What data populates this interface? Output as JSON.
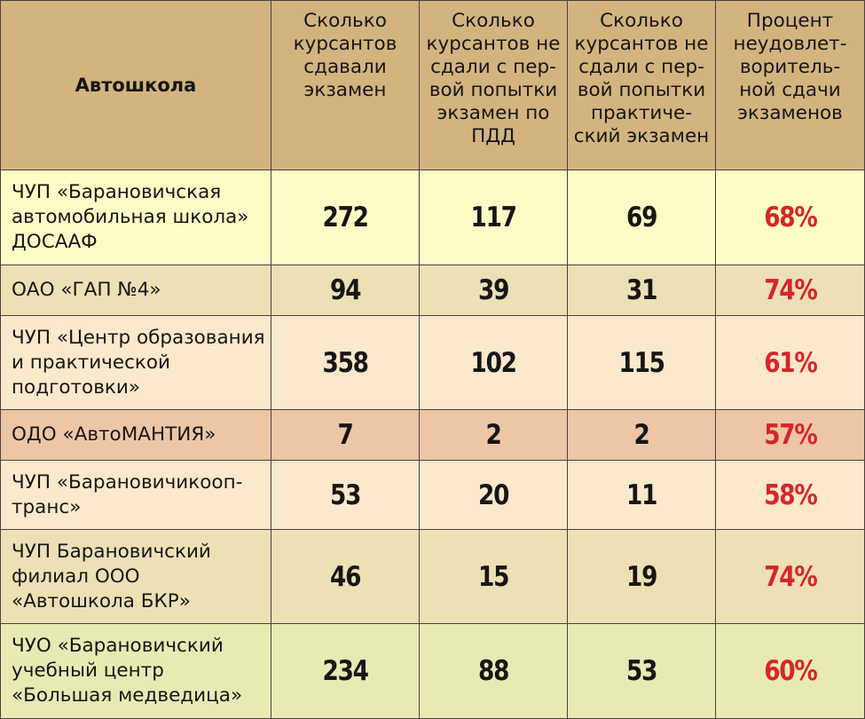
{
  "table": {
    "headers": [
      "Автошкола",
      "Сколько\nкурсантов\nсдавали\nэкзамен",
      "Сколько\nкурсантов не\nсдали с пер-\nвой попытки\nэкзамен по\nПДД",
      "Сколько\nкурсантов не\nсдали с пер-\nвой попытки\nпрактиче-\nский экзамен",
      "Процент\nнеудовлет-\nворитель-\nной сдачи\nэкзаменов"
    ],
    "rows": [
      {
        "name": "ЧУП «Барановичская\nавтомобильная школа»\nДОСААФ",
        "took": "272",
        "failed_theory": "117",
        "failed_practice": "69",
        "fail_percent": "68%"
      },
      {
        "name": "ОАО «ГАП №4»",
        "took": "94",
        "failed_theory": "39",
        "failed_practice": "31",
        "fail_percent": "74%"
      },
      {
        "name": "ЧУП «Центр образования\nи практической\nподготовки»",
        "took": "358",
        "failed_theory": "102",
        "failed_practice": "115",
        "fail_percent": "61%"
      },
      {
        "name": "ОДО «АвтоМАНТИЯ»",
        "took": "7",
        "failed_theory": "2",
        "failed_practice": "2",
        "fail_percent": "57%"
      },
      {
        "name": "ЧУП «Барановичикооп-\nтранс»",
        "took": "53",
        "failed_theory": "20",
        "failed_practice": "11",
        "fail_percent": "58%"
      },
      {
        "name": "ЧУП Барановичский\nфилиал ООО\n«Автошкола БКР»",
        "took": "46",
        "failed_theory": "15",
        "failed_practice": "19",
        "fail_percent": "74%"
      },
      {
        "name": "ЧУО «Барановичский\nучебный центр\n«Большая медведица»",
        "took": "234",
        "failed_theory": "88",
        "failed_practice": "53",
        "fail_percent": "60%"
      }
    ]
  },
  "colors": {
    "header_bg": "#d3b47f",
    "percent_text": "#d6262a",
    "border": "#4a4040"
  }
}
